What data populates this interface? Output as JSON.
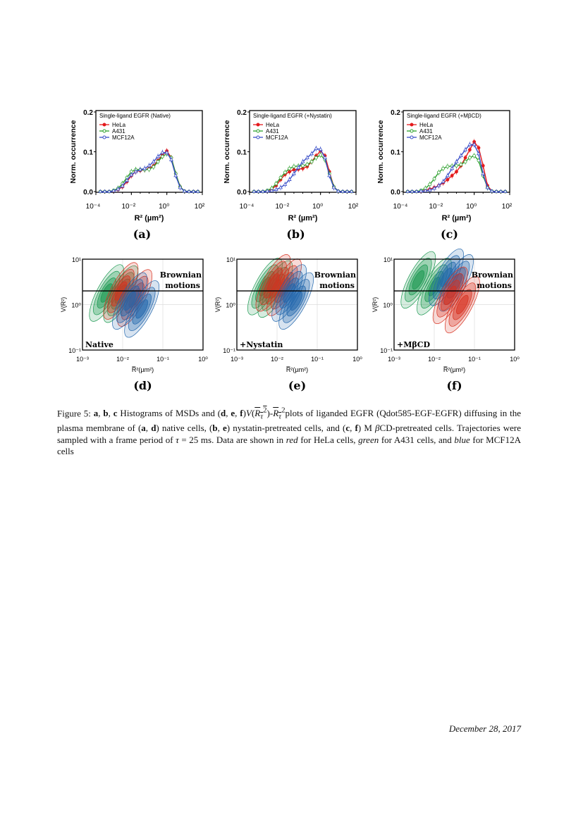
{
  "chart_data": [
    {
      "panel": "(a)",
      "type": "line",
      "title": "Single-ligand EGFR (Native)",
      "xlabel": "R² (µm²)",
      "ylabel": "Norm. occurrence",
      "xscale": "log",
      "xlim": [
        0.0001,
        100
      ],
      "ylim": [
        0,
        0.2
      ],
      "xticks": [
        "10⁻⁴",
        "10⁻²",
        "10⁰",
        "10²"
      ],
      "yticks": [
        "0.0",
        "0.1",
        "0.2"
      ],
      "legend": "top-left",
      "x": [
        0.000178,
        0.000316,
        0.000562,
        0.001,
        0.00178,
        0.00316,
        0.00562,
        0.01,
        0.0178,
        0.0316,
        0.0562,
        0.1,
        0.178,
        0.316,
        0.562,
        1,
        1.78,
        3.16,
        5.62,
        10,
        17.8,
        31.6,
        56.2
      ],
      "series": [
        {
          "name": "HeLa",
          "color": "#e41a1c",
          "marker": "filled-circle",
          "values": [
            0,
            0,
            0,
            0.002,
            0.005,
            0.012,
            0.025,
            0.04,
            0.05,
            0.053,
            0.055,
            0.058,
            0.065,
            0.078,
            0.092,
            0.102,
            0.085,
            0.045,
            0.012,
            0.001,
            0,
            0,
            0
          ]
        },
        {
          "name": "A431",
          "color": "#2ca02c",
          "marker": "open-circle",
          "values": [
            0,
            0,
            0,
            0.003,
            0.008,
            0.02,
            0.035,
            0.05,
            0.055,
            0.055,
            0.055,
            0.056,
            0.062,
            0.075,
            0.088,
            0.095,
            0.085,
            0.045,
            0.012,
            0.001,
            0,
            0,
            0
          ]
        },
        {
          "name": "MCF12A",
          "color": "#3a4fc8",
          "marker": "open-triangle",
          "values": [
            0,
            0,
            0,
            0.002,
            0.006,
            0.014,
            0.028,
            0.042,
            0.05,
            0.055,
            0.058,
            0.065,
            0.075,
            0.088,
            0.098,
            0.098,
            0.08,
            0.04,
            0.01,
            0.001,
            0,
            0,
            0
          ]
        }
      ]
    },
    {
      "panel": "(b)",
      "type": "line",
      "title": "Single-ligand EGFR (+Nystatin)",
      "xlabel": "R² (µm²)",
      "ylabel": "Norm. occurrence",
      "xscale": "log",
      "xlim": [
        0.0001,
        100
      ],
      "ylim": [
        0,
        0.2
      ],
      "xticks": [
        "10⁻⁴",
        "10⁻²",
        "10⁰",
        "10²"
      ],
      "yticks": [
        "0.0",
        "0.1",
        "0.2"
      ],
      "legend": "top-left",
      "x": [
        0.000178,
        0.000316,
        0.000562,
        0.001,
        0.00178,
        0.00316,
        0.00562,
        0.01,
        0.0178,
        0.0316,
        0.0562,
        0.1,
        0.178,
        0.316,
        0.562,
        1,
        1.78,
        3.16,
        5.62,
        10,
        17.8,
        31.6,
        56.2
      ],
      "series": [
        {
          "name": "HeLa",
          "color": "#e41a1c",
          "marker": "filled-circle",
          "values": [
            0,
            0,
            0,
            0.002,
            0.006,
            0.015,
            0.03,
            0.043,
            0.05,
            0.055,
            0.056,
            0.058,
            0.063,
            0.075,
            0.09,
            0.102,
            0.09,
            0.05,
            0.012,
            0.001,
            0,
            0,
            0
          ]
        },
        {
          "name": "A431",
          "color": "#2ca02c",
          "marker": "open-circle",
          "values": [
            0,
            0,
            0,
            0.003,
            0.008,
            0.02,
            0.035,
            0.048,
            0.058,
            0.063,
            0.064,
            0.065,
            0.068,
            0.075,
            0.085,
            0.092,
            0.08,
            0.045,
            0.012,
            0.001,
            0,
            0,
            0
          ]
        },
        {
          "name": "MCF12A",
          "color": "#3a4fc8",
          "marker": "open-triangle",
          "values": [
            0,
            0,
            0,
            0.001,
            0.002,
            0.005,
            0.01,
            0.018,
            0.03,
            0.045,
            0.06,
            0.075,
            0.085,
            0.095,
            0.108,
            0.106,
            0.085,
            0.04,
            0.01,
            0.001,
            0,
            0,
            0
          ]
        }
      ]
    },
    {
      "panel": "(c)",
      "type": "line",
      "title": "Single-ligand EGFR (+MβCD)",
      "xlabel": "R² (µm²)",
      "ylabel": "Norm. occurrence",
      "xscale": "log",
      "xlim": [
        0.0001,
        100
      ],
      "ylim": [
        0,
        0.2
      ],
      "xticks": [
        "10⁻⁴",
        "10⁻²",
        "10⁰",
        "10²"
      ],
      "yticks": [
        "0.0",
        "0.1",
        "0.2"
      ],
      "legend": "top-left",
      "x": [
        0.000178,
        0.000316,
        0.000562,
        0.001,
        0.00178,
        0.00316,
        0.00562,
        0.01,
        0.0178,
        0.0316,
        0.0562,
        0.1,
        0.178,
        0.316,
        0.562,
        1,
        1.78,
        3.16,
        5.62,
        10,
        17.8,
        31.6,
        56.2
      ],
      "series": [
        {
          "name": "HeLa",
          "color": "#e41a1c",
          "marker": "filled-circle",
          "values": [
            0,
            0,
            0,
            0.001,
            0.003,
            0.006,
            0.01,
            0.015,
            0.022,
            0.03,
            0.04,
            0.05,
            0.065,
            0.085,
            0.105,
            0.125,
            0.11,
            0.065,
            0.015,
            0.001,
            0,
            0,
            0
          ]
        },
        {
          "name": "A431",
          "color": "#2ca02c",
          "marker": "open-circle",
          "values": [
            0,
            0,
            0,
            0.003,
            0.008,
            0.018,
            0.032,
            0.048,
            0.058,
            0.063,
            0.064,
            0.065,
            0.068,
            0.075,
            0.085,
            0.09,
            0.078,
            0.04,
            0.01,
            0.001,
            0,
            0,
            0
          ]
        },
        {
          "name": "MCF12A",
          "color": "#3a4fc8",
          "marker": "open-triangle",
          "values": [
            0,
            0,
            0,
            0.001,
            0.002,
            0.004,
            0.008,
            0.015,
            0.025,
            0.04,
            0.058,
            0.075,
            0.09,
            0.105,
            0.118,
            0.118,
            0.095,
            0.045,
            0.01,
            0.001,
            0,
            0,
            0
          ]
        }
      ]
    },
    {
      "panel": "(d)",
      "type": "contour",
      "label": "Native",
      "annotation": "Brownian motions",
      "xlabel": "R̅²(µm²)",
      "ylabel": "V(R²)",
      "xscale": "log",
      "yscale": "log",
      "xlim": [
        0.001,
        1
      ],
      "ylim": [
        0.1,
        10
      ],
      "brownian_level": 2,
      "xticks": [
        "10⁻³",
        "10⁻²",
        "10⁻¹",
        "10⁰"
      ],
      "yticks": [
        "10⁻¹",
        "10⁰",
        "10¹"
      ],
      "series": [
        {
          "color": "#1a9850",
          "centers": [
            [
              0.004,
              1.8
            ],
            [
              0.009,
              1.7
            ]
          ]
        },
        {
          "color": "#d7301f",
          "centers": [
            [
              0.009,
              2.0
            ],
            [
              0.02,
              1.4
            ]
          ]
        },
        {
          "color": "#2166ac",
          "centers": [
            [
              0.015,
              1.2
            ],
            [
              0.03,
              0.8
            ]
          ]
        }
      ]
    },
    {
      "panel": "(e)",
      "type": "contour",
      "label": "+Nystatin",
      "annotation": "Brownian motions",
      "xlabel": "R̅²(µm²)",
      "ylabel": "V(R²)",
      "xscale": "log",
      "yscale": "log",
      "xlim": [
        0.001,
        1
      ],
      "ylim": [
        0.1,
        10
      ],
      "brownian_level": 2,
      "xticks": [
        "10⁻³",
        "10⁻²",
        "10⁻¹",
        "10⁰"
      ],
      "yticks": [
        "10⁻¹",
        "10⁰",
        "10¹"
      ],
      "series": [
        {
          "color": "#1a9850",
          "centers": [
            [
              0.005,
              2.5
            ],
            [
              0.009,
              2.2
            ]
          ]
        },
        {
          "color": "#d7301f",
          "centers": [
            [
              0.008,
              3.0
            ],
            [
              0.015,
              2.4
            ]
          ]
        },
        {
          "color": "#2166ac",
          "centers": [
            [
              0.02,
              1.8
            ],
            [
              0.03,
              1.2
            ]
          ]
        }
      ]
    },
    {
      "panel": "(f)",
      "type": "contour",
      "label": "+MβCD",
      "annotation": "Brownian motions",
      "xlabel": "R̅²(µm²)",
      "ylabel": "V(R²)",
      "xscale": "log",
      "yscale": "log",
      "xlim": [
        0.001,
        1
      ],
      "ylim": [
        0.1,
        10
      ],
      "brownian_level": 2,
      "xticks": [
        "10⁻³",
        "10⁻²",
        "10⁻¹",
        "10⁰"
      ],
      "yticks": [
        "10⁻¹",
        "10⁰",
        "10¹"
      ],
      "series": [
        {
          "color": "#1a9850",
          "centers": [
            [
              0.004,
              3.5
            ],
            [
              0.01,
              2.5
            ]
          ]
        },
        {
          "color": "#2166ac",
          "centers": [
            [
              0.02,
              4.0
            ],
            [
              0.035,
              3.0
            ]
          ]
        },
        {
          "color": "#d7301f",
          "centers": [
            [
              0.025,
              1.6
            ],
            [
              0.05,
              1.0
            ]
          ]
        }
      ]
    }
  ],
  "caption": {
    "prefix": "Figure 5: ",
    "html": "<b>a</b>, <b>b</b>, <b>c</b> Histograms of MSDs and (<b>d</b>, <b>e</b>, <b>f</b>)<i>V</i>(<span style=\"text-decoration:overline\"><i>R<sub>τ</sub></i><sup>2</sup></span>)-<span style=\"text-decoration:overline\"><i>R<sub>τ</sub></i></span><sup>2</sup>plots of liganded EGFR (Qdot585-EGF-EGFR) diffusing in the plasma membrane of (<b>a</b>, <b>d</b>) native cells, (<b>b</b>, <b>e</b>) nystatin-pretreated cells, and (<b>c</b>, <b>f</b>) M <i>β</i>CD-pretreated cells. Trajectories were sampled with a frame period of <i>τ</i> = 25 ms. Data are shown in <i>red</i> for HeLa cells, <i>green</i> for A431 cells, and <i>blue</i> for MCF12A cells"
  },
  "footer": {
    "date": "December 28, 2017"
  }
}
